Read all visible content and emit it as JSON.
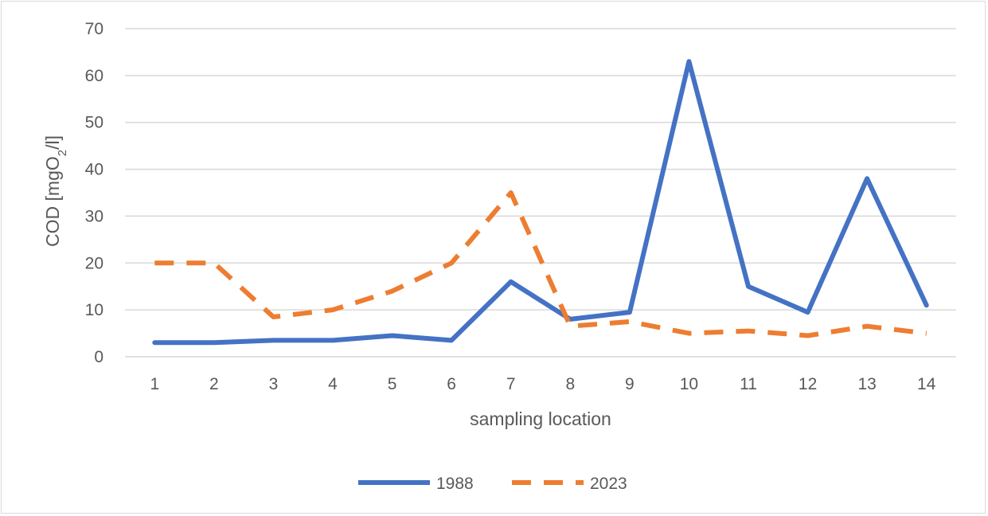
{
  "chart_data": {
    "type": "line",
    "xlabel": "sampling location",
    "ylabel": {
      "prefix": "COD [mgO",
      "sub": "2",
      "suffix": "/l]"
    },
    "categories": [
      "1",
      "2",
      "3",
      "4",
      "5",
      "6",
      "7",
      "8",
      "9",
      "10",
      "11",
      "12",
      "13",
      "14"
    ],
    "ylim": [
      0,
      70
    ],
    "yticks": [
      0,
      10,
      20,
      30,
      40,
      50,
      60,
      70
    ],
    "grid": true,
    "legend_position": "bottom",
    "series": [
      {
        "name": "1988",
        "color": "#4472c4",
        "style": "solid",
        "values": [
          3,
          3,
          3.5,
          3.5,
          4.5,
          3.5,
          16,
          8,
          9.5,
          63,
          15,
          9.5,
          38,
          11
        ]
      },
      {
        "name": "2023",
        "color": "#ed7d31",
        "style": "dashed",
        "values": [
          20,
          20,
          8.5,
          10,
          14,
          20,
          35,
          6.5,
          7.5,
          5,
          5.5,
          4.5,
          6.5,
          5
        ]
      }
    ]
  }
}
